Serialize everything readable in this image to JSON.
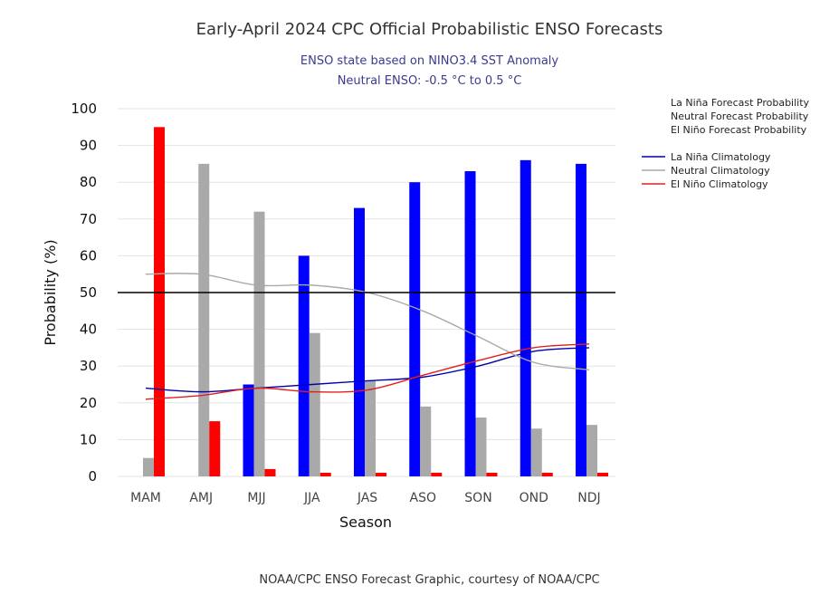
{
  "chart_data": {
    "type": "bar",
    "title": "Early-April 2024 CPC Official Probabilistic ENSO Forecasts",
    "subtitle": [
      "ENSO state based on NINO3.4 SST Anomaly",
      "Neutral ENSO: -0.5 °C to 0.5 °C"
    ],
    "xlabel": "Season",
    "ylabel": "Probability (%)",
    "ylim": [
      0,
      100
    ],
    "yticks": [
      0,
      10,
      20,
      30,
      40,
      50,
      60,
      70,
      80,
      90,
      100
    ],
    "reference_line": 50,
    "categories": [
      "MAM",
      "AMJ",
      "MJJ",
      "JJA",
      "JAS",
      "ASO",
      "SON",
      "OND",
      "NDJ"
    ],
    "series": [
      {
        "name": "La Niña Forecast Probability",
        "kind": "bar",
        "color": "#0000ff",
        "values": [
          0,
          0,
          25,
          60,
          73,
          80,
          83,
          86,
          85
        ]
      },
      {
        "name": "Neutral Forecast Probability",
        "kind": "bar",
        "color": "#a9a9a9",
        "values": [
          5,
          85,
          72,
          39,
          26,
          19,
          16,
          13,
          14
        ]
      },
      {
        "name": "El Niño Forecast Probability",
        "kind": "bar",
        "color": "#ff0000",
        "values": [
          95,
          15,
          2,
          1,
          1,
          1,
          1,
          1,
          1
        ]
      },
      {
        "name": "La Niña Climatology",
        "kind": "line",
        "color": "#0000b3",
        "values": [
          24,
          23,
          24,
          25,
          26,
          27,
          30,
          34,
          35
        ]
      },
      {
        "name": "Neutral Climatology",
        "kind": "line",
        "color": "#a9a9a9",
        "values": [
          55,
          55,
          52,
          52,
          50,
          45,
          38,
          31,
          29
        ]
      },
      {
        "name": "El Niño Climatology",
        "kind": "line",
        "color": "#e02020",
        "values": [
          21,
          22,
          24,
          23,
          23.5,
          27.5,
          31.5,
          35,
          36
        ]
      }
    ],
    "legend_position": "top-right"
  },
  "footer": "NOAA/CPC ENSO Forecast Graphic, courtesy of NOAA/CPC"
}
